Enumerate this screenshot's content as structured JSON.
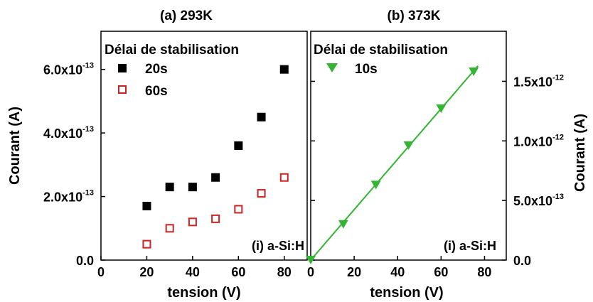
{
  "chart_data": [
    {
      "type": "scatter",
      "title": "(a) 293K",
      "xlabel": "tension (V)",
      "ylabel": "Courant (A)",
      "xlim": [
        0,
        90
      ],
      "ylim": [
        0,
        7.2e-13
      ],
      "x_ticks": [
        0,
        20,
        40,
        60,
        80
      ],
      "x_tick_labels": [
        "0",
        "20",
        "40",
        "60",
        "80"
      ],
      "y_ticks": [
        0,
        2e-13,
        4e-13,
        6e-13
      ],
      "y_tick_labels": [
        {
          "mantissa": "0.0",
          "exponent": ""
        },
        {
          "mantissa": "2.0x10",
          "exponent": "-13"
        },
        {
          "mantissa": "4.0x10",
          "exponent": "-13"
        },
        {
          "mantissa": "6.0x10",
          "exponent": "-13"
        }
      ],
      "legend_title": "Délai de stabilisation",
      "legend_position": "top-left",
      "annotation": "(i) a-Si:H",
      "series": [
        {
          "name": "20s",
          "marker": "filled-square",
          "color": "#000000",
          "x": [
            20,
            30,
            40,
            50,
            60,
            70,
            80
          ],
          "y": [
            1.7e-13,
            2.3e-13,
            2.3e-13,
            2.6e-13,
            3.6e-13,
            4.5e-13,
            6e-13
          ]
        },
        {
          "name": "60s",
          "marker": "open-square",
          "color": "#cc2222",
          "x": [
            20,
            30,
            40,
            50,
            60,
            70,
            80
          ],
          "y": [
            5e-14,
            1e-13,
            1.2e-13,
            1.3e-13,
            1.6e-13,
            2.1e-13,
            2.6e-13
          ]
        }
      ]
    },
    {
      "type": "scatter",
      "title": "(b) 373K",
      "xlabel": "tension (V)",
      "ylabel": "Courant (A)",
      "y_axis_side": "right",
      "xlim": [
        0,
        90
      ],
      "ylim": [
        0,
        1.92e-12
      ],
      "x_ticks": [
        0,
        20,
        40,
        60,
        80
      ],
      "x_tick_labels": [
        "0",
        "20",
        "40",
        "60",
        "80"
      ],
      "y_ticks": [
        0,
        5e-13,
        1e-12,
        1.5e-12
      ],
      "y_tick_labels": [
        {
          "mantissa": "0.0",
          "exponent": ""
        },
        {
          "mantissa": "5.0x10",
          "exponent": "-13"
        },
        {
          "mantissa": "1.0x10",
          "exponent": "-12"
        },
        {
          "mantissa": "1.5x10",
          "exponent": "-12"
        }
      ],
      "legend_title": "Délai de stabilisation",
      "legend_position": "top-left",
      "annotation": "(i) a-Si:H",
      "series": [
        {
          "name": "10s",
          "marker": "filled-triangle-down",
          "color": "#33b533",
          "x": [
            0,
            15,
            30,
            45,
            60,
            75
          ],
          "y": [
            0,
            3e-13,
            6.3e-13,
            9.6e-13,
            1.27e-12,
            1.58e-12
          ],
          "fit_line": {
            "x": [
              0,
              77
            ],
            "y": [
              0,
              1.63e-12
            ]
          }
        }
      ]
    }
  ]
}
